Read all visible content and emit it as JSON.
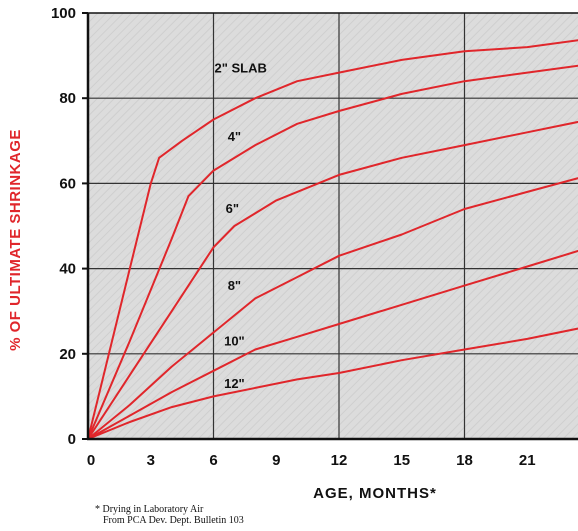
{
  "chart_data": {
    "type": "line",
    "title": "",
    "xlabel": "AGE, MONTHS*",
    "ylabel": "% OF ULTIMATE SHRINKAGE",
    "xlim": [
      0,
      24
    ],
    "ylim": [
      0,
      100
    ],
    "x_ticks": [
      "0",
      "3",
      "6",
      "9",
      "12",
      "15",
      "18",
      "21"
    ],
    "y_ticks": [
      "0",
      "20",
      "40",
      "60",
      "80",
      "100"
    ],
    "grid": true,
    "series": [
      {
        "name": "2\" SLAB",
        "x": [
          0,
          1,
          2,
          3,
          3.4,
          4.5,
          6,
          8,
          10,
          12,
          15,
          18,
          21,
          24
        ],
        "y": [
          0,
          20,
          40,
          60,
          66,
          70,
          75,
          80,
          84,
          86,
          89,
          91,
          92,
          94
        ]
      },
      {
        "name": "4\"",
        "x": [
          0,
          2,
          4,
          4.8,
          6,
          8,
          10,
          12,
          15,
          18,
          21,
          24
        ],
        "y": [
          0,
          23,
          47,
          57,
          63,
          69,
          74,
          77,
          81,
          84,
          86,
          88
        ]
      },
      {
        "name": "6\"",
        "x": [
          0,
          2,
          4,
          6,
          7,
          9,
          12,
          15,
          18,
          21,
          24
        ],
        "y": [
          0,
          15,
          30,
          45,
          50,
          56,
          62,
          66,
          69,
          72,
          75
        ]
      },
      {
        "name": "8\"",
        "x": [
          0,
          2,
          4,
          6,
          8,
          10,
          12,
          15,
          18,
          21,
          24
        ],
        "y": [
          0,
          8,
          17,
          25,
          33,
          38,
          43,
          48,
          54,
          58,
          62
        ]
      },
      {
        "name": "10\"",
        "x": [
          0,
          2,
          4,
          6,
          8,
          10,
          12,
          15,
          18,
          21,
          24
        ],
        "y": [
          0,
          5.5,
          11,
          16,
          21,
          24,
          27,
          31.5,
          36,
          40.5,
          45
        ]
      },
      {
        "name": "12\"",
        "x": [
          0,
          2,
          4,
          6,
          8,
          10,
          12,
          15,
          18,
          21,
          24
        ],
        "y": [
          0,
          4,
          7.5,
          10,
          12,
          14,
          15.5,
          18.5,
          21,
          23.5,
          26.5
        ]
      }
    ],
    "curve_labels": [
      {
        "text": "2\" SLAB",
        "x": 7.3,
        "y": 86
      },
      {
        "text": "4\"",
        "x": 7.0,
        "y": 70
      },
      {
        "text": "6\"",
        "x": 6.9,
        "y": 53
      },
      {
        "text": "8\"",
        "x": 7.0,
        "y": 35
      },
      {
        "text": "10\"",
        "x": 7.0,
        "y": 22
      },
      {
        "text": "12\"",
        "x": 7.0,
        "y": 12
      }
    ],
    "colors": {
      "curve": "#e0262b",
      "grid": "#333333",
      "plot_bg": "#dcdcdc",
      "ylabel": "#e0262b"
    }
  },
  "footnote": {
    "line1": "* Drying in Laboratory Air",
    "line2": "From PCA Dev. Dept. Bulletin 103"
  }
}
